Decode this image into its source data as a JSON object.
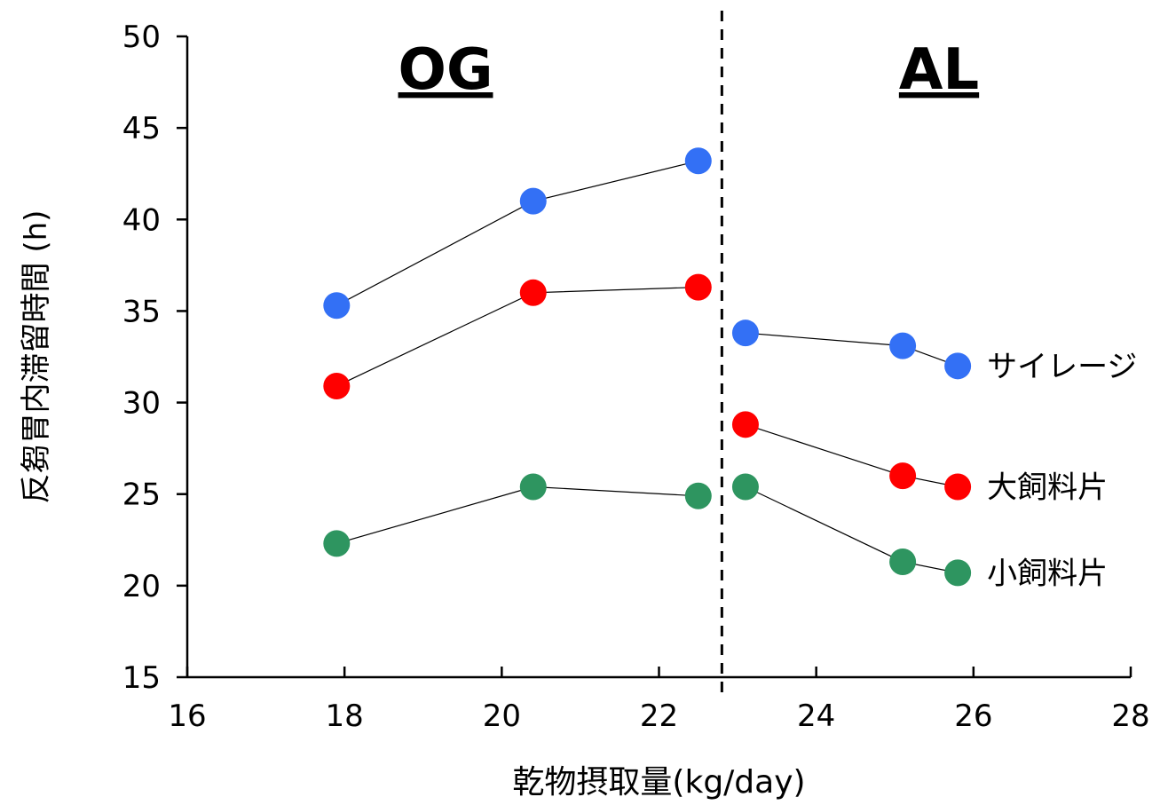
{
  "chart_data": {
    "type": "scatter",
    "xlabel": "乾物摂取量(kg/day)",
    "ylabel": "反芻胃内滞留時間 (h)",
    "xlim": [
      16,
      28
    ],
    "ylim": [
      15,
      50
    ],
    "xticks": [
      16,
      18,
      20,
      22,
      24,
      26,
      28
    ],
    "yticks": [
      15,
      20,
      25,
      30,
      35,
      40,
      45,
      50
    ],
    "grid": false,
    "divider_x": 22.8,
    "groups": [
      {
        "label": "OG",
        "x_range": [
          16,
          22.8
        ]
      },
      {
        "label": "AL",
        "x_range": [
          22.8,
          28
        ]
      }
    ],
    "series": [
      {
        "name": "サイレージ",
        "color": "#3370f5",
        "segments": [
          [
            {
              "x": 17.9,
              "y": 35.3
            },
            {
              "x": 20.4,
              "y": 41.0
            },
            {
              "x": 22.5,
              "y": 43.2
            }
          ],
          [
            {
              "x": 23.1,
              "y": 33.8
            },
            {
              "x": 25.1,
              "y": 33.1
            },
            {
              "x": 25.8,
              "y": 32.0
            }
          ]
        ]
      },
      {
        "name": "大飼料片",
        "color": "#ff0000",
        "segments": [
          [
            {
              "x": 17.9,
              "y": 30.9
            },
            {
              "x": 20.4,
              "y": 36.0
            },
            {
              "x": 22.5,
              "y": 36.3
            }
          ],
          [
            {
              "x": 23.1,
              "y": 28.8
            },
            {
              "x": 25.1,
              "y": 26.0
            },
            {
              "x": 25.8,
              "y": 25.4
            }
          ]
        ]
      },
      {
        "name": "小飼料片",
        "color": "#2e9560",
        "segments": [
          [
            {
              "x": 17.9,
              "y": 22.3
            },
            {
              "x": 20.4,
              "y": 25.4
            },
            {
              "x": 22.5,
              "y": 24.9
            }
          ],
          [
            {
              "x": 23.1,
              "y": 25.4
            },
            {
              "x": 25.1,
              "y": 21.3
            },
            {
              "x": 25.8,
              "y": 20.7
            }
          ]
        ]
      }
    ]
  }
}
